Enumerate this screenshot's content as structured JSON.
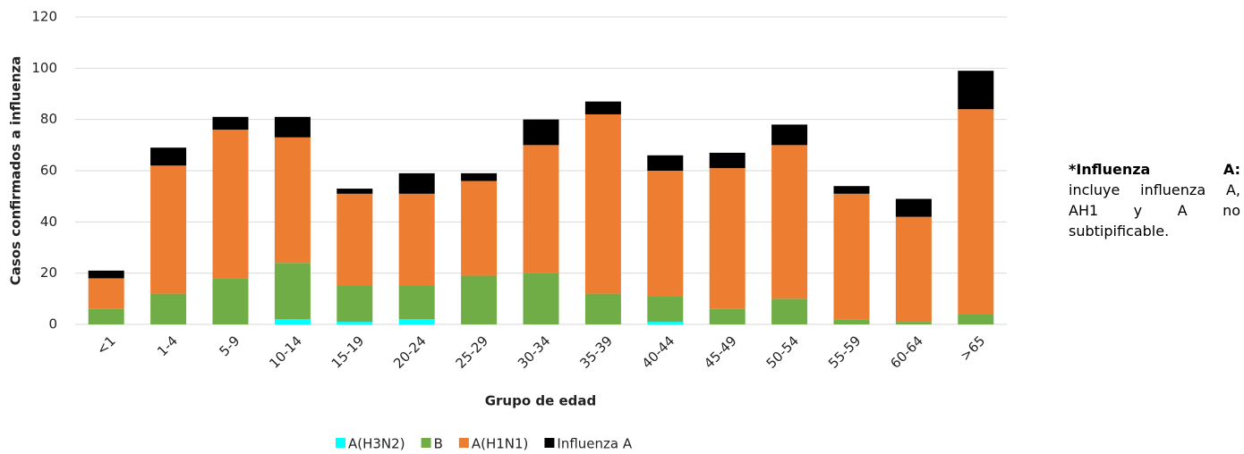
{
  "chart_data": {
    "type": "stacked-bar",
    "y_label": "Casos confirmados a influenza",
    "x_label": "Grupo de edad",
    "categories": [
      "<1",
      "1-4",
      "5-9",
      "10-14",
      "15-19",
      "20-24",
      "25-29",
      "30-34",
      "35-39",
      "40-44",
      "45-49",
      "50-54",
      "55-59",
      "60-64",
      ">65"
    ],
    "series": [
      {
        "name": "A(H3N2)",
        "color": "#00ffff",
        "values": [
          0,
          0,
          0,
          2,
          1,
          2,
          0,
          0,
          0,
          1,
          0,
          0,
          0,
          0,
          0
        ]
      },
      {
        "name": "B",
        "color": "#70ad47",
        "values": [
          6,
          12,
          18,
          22,
          14,
          13,
          19,
          20,
          12,
          10,
          6,
          10,
          2,
          1,
          4
        ]
      },
      {
        "name": "A(H1N1)",
        "color": "#ed7d31",
        "values": [
          12,
          50,
          58,
          49,
          36,
          36,
          37,
          50,
          70,
          49,
          55,
          60,
          49,
          41,
          80
        ]
      },
      {
        "name": "Influenza A",
        "color": "#000000",
        "values": [
          3,
          7,
          5,
          8,
          2,
          8,
          3,
          10,
          5,
          6,
          6,
          8,
          3,
          7,
          15
        ]
      }
    ],
    "ylim": [
      0,
      120
    ],
    "yticks": [
      0,
      20,
      40,
      60,
      80,
      100,
      120
    ],
    "grid": true,
    "note_title": "*Influenza A:",
    "note_text": "incluye influenza A, AH1 y A no subtipificable."
  }
}
